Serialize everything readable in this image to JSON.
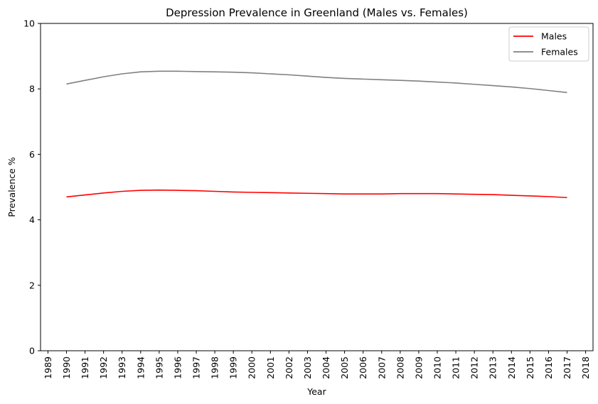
{
  "chart_data": {
    "type": "line",
    "title": "Depression Prevalence in Greenland (Males vs. Females)",
    "xlabel": "Year",
    "ylabel": "Prevalence %",
    "xlim": [
      1988.6,
      2018.4
    ],
    "ylim": [
      0,
      10
    ],
    "x_ticks": [
      1989,
      1990,
      1991,
      1992,
      1993,
      1994,
      1995,
      1996,
      1997,
      1998,
      1999,
      2000,
      2001,
      2002,
      2003,
      2004,
      2005,
      2006,
      2007,
      2008,
      2009,
      2010,
      2011,
      2012,
      2013,
      2014,
      2015,
      2016,
      2017,
      2018
    ],
    "y_ticks": [
      0,
      2,
      4,
      6,
      8,
      10
    ],
    "grid": false,
    "legend": "top-right",
    "x": [
      1990,
      1991,
      1992,
      1993,
      1994,
      1995,
      1996,
      1997,
      1998,
      1999,
      2000,
      2001,
      2002,
      2003,
      2004,
      2005,
      2006,
      2007,
      2008,
      2009,
      2010,
      2011,
      2012,
      2013,
      2014,
      2015,
      2016,
      2017
    ],
    "series": [
      {
        "name": "Males",
        "color": "#ff0000",
        "values": [
          4.7,
          4.76,
          4.82,
          4.87,
          4.9,
          4.91,
          4.9,
          4.89,
          4.87,
          4.85,
          4.84,
          4.83,
          4.82,
          4.81,
          4.8,
          4.79,
          4.79,
          4.79,
          4.8,
          4.8,
          4.8,
          4.79,
          4.78,
          4.77,
          4.75,
          4.73,
          4.71,
          4.68
        ]
      },
      {
        "name": "Females",
        "color": "#808080",
        "values": [
          8.15,
          8.26,
          8.37,
          8.46,
          8.52,
          8.54,
          8.54,
          8.53,
          8.52,
          8.51,
          8.49,
          8.46,
          8.43,
          8.39,
          8.35,
          8.32,
          8.3,
          8.28,
          8.26,
          8.24,
          8.21,
          8.18,
          8.14,
          8.1,
          8.06,
          8.01,
          7.95,
          7.89
        ]
      }
    ]
  }
}
